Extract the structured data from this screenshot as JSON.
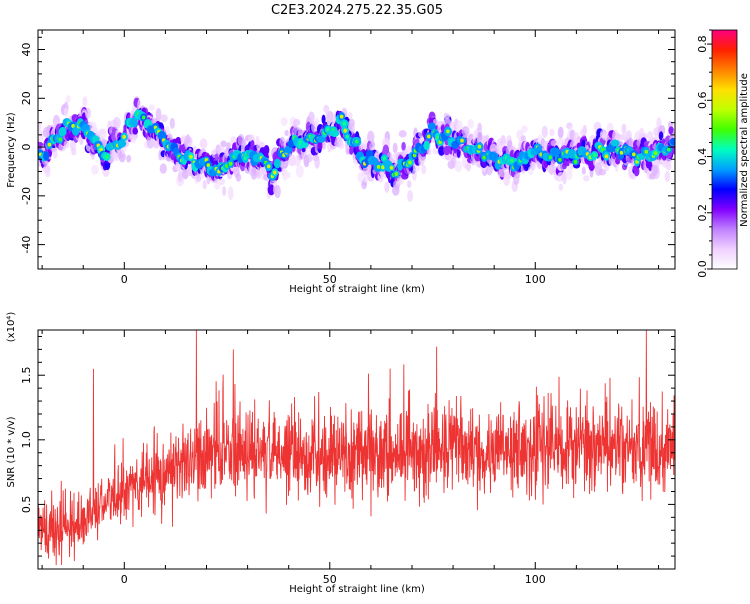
{
  "title": "C2E3.2024.275.22.35.G05",
  "chart_data": [
    {
      "type": "heatmap",
      "xlabel": "Height of straight line (km)",
      "ylabel": "Frequency (Hz)",
      "xlim": [
        -21,
        134
      ],
      "ylim": [
        -50,
        48
      ],
      "x_ticks": [
        0,
        50,
        100
      ],
      "y_ticks": [
        -40,
        -20,
        0,
        20,
        40
      ],
      "colorbar": {
        "label": "Normalized spectral amplitude",
        "range": [
          0.0,
          0.85
        ],
        "ticks": [
          0.0,
          0.2,
          0.4,
          0.6,
          0.8
        ],
        "tick_labels": [
          "0.0",
          "0.2",
          "0.4",
          "0.6",
          "0.8"
        ],
        "colormap": [
          "#ffffff",
          "#f0d0ff",
          "#c080ff",
          "#8000ff",
          "#0000ff",
          "#00a0ff",
          "#00ffc0",
          "#40ff00",
          "#c0ff00",
          "#ffe000",
          "#ff8000",
          "#ff2000",
          "#ff0080"
        ]
      },
      "ridge": {
        "x": [
          -20,
          -15,
          -10,
          -5,
          0,
          3,
          8,
          13,
          18,
          23,
          28,
          33,
          36,
          40,
          45,
          50,
          53,
          58,
          63,
          66,
          70,
          75,
          80,
          85,
          90,
          95,
          100,
          105,
          110,
          115,
          120,
          125,
          130,
          133
        ],
        "freq": [
          -3,
          7,
          9,
          -3,
          4,
          14,
          6,
          -3,
          -6,
          -10,
          -3,
          -4,
          -11,
          1,
          3,
          6,
          10,
          -5,
          -7,
          -10,
          -5,
          6,
          3,
          -1,
          -5,
          -6,
          -2,
          -4,
          -3,
          -2,
          -1,
          -4,
          -2,
          1
        ]
      }
    },
    {
      "type": "line",
      "xlabel": "Height of straight line (km)",
      "ylabel": "SNR (10 * v/v)",
      "y_multiplier": "(x10⁴)",
      "xlim": [
        -21,
        134
      ],
      "ylim": [
        0.0,
        1.85
      ],
      "x_ticks": [
        0,
        50,
        100
      ],
      "y_ticks": [
        0.5,
        1.0,
        1.5
      ],
      "y_tick_labels": [
        "0.5",
        "1.0",
        "1.5"
      ],
      "color": "#ee3333",
      "trend": {
        "x": [
          -21,
          -15,
          -10,
          -5,
          0,
          5,
          10,
          20,
          30,
          40,
          50,
          60,
          70,
          80,
          90,
          100,
          110,
          120,
          134
        ],
        "mean": [
          0.33,
          0.28,
          0.35,
          0.5,
          0.58,
          0.66,
          0.75,
          0.86,
          0.9,
          0.9,
          0.88,
          0.9,
          0.92,
          0.92,
          0.9,
          0.92,
          0.95,
          0.92,
          0.93
        ],
        "spread": [
          0.28,
          0.3,
          0.28,
          0.3,
          0.33,
          0.37,
          0.42,
          0.45,
          0.45,
          0.45,
          0.45,
          0.45,
          0.45,
          0.45,
          0.45,
          0.45,
          0.45,
          0.45,
          0.45
        ]
      },
      "spikes": [
        {
          "x": -7.5,
          "y": 1.55
        },
        {
          "x": 17.5,
          "y": 1.85
        },
        {
          "x": 26.5,
          "y": 1.7
        },
        {
          "x": 76,
          "y": 1.72
        },
        {
          "x": 127,
          "y": 1.85
        }
      ]
    }
  ]
}
